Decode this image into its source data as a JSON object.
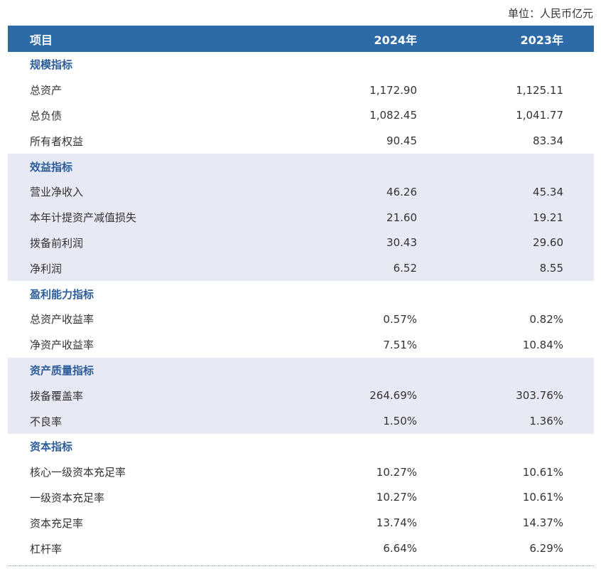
{
  "unit_label": "单位：人民币亿元",
  "header": {
    "item": "项目",
    "y1": "2024年",
    "y2": "2023年"
  },
  "sections": [
    {
      "title": "规模指标",
      "rows": [
        {
          "label": "总资产",
          "y1": "1,172.90",
          "y2": "1,125.11"
        },
        {
          "label": "总负债",
          "y1": "1,082.45",
          "y2": "1,041.77"
        },
        {
          "label": "所有者权益",
          "y1": "90.45",
          "y2": "83.34"
        }
      ]
    },
    {
      "title": "效益指标",
      "rows": [
        {
          "label": "营业净收入",
          "y1": "46.26",
          "y2": "45.34"
        },
        {
          "label": "本年计提资产减值损失",
          "y1": "21.60",
          "y2": "19.21"
        },
        {
          "label": "拨备前利润",
          "y1": "30.43",
          "y2": "29.60"
        },
        {
          "label": "净利润",
          "y1": "6.52",
          "y2": "8.55"
        }
      ]
    },
    {
      "title": "盈利能力指标",
      "rows": [
        {
          "label": "总资产收益率",
          "y1": "0.57%",
          "y2": "0.82%"
        },
        {
          "label": "净资产收益率",
          "y1": "7.51%",
          "y2": "10.84%"
        }
      ]
    },
    {
      "title": "资产质量指标",
      "rows": [
        {
          "label": "拨备覆盖率",
          "y1": "264.69%",
          "y2": "303.76%"
        },
        {
          "label": "不良率",
          "y1": "1.50%",
          "y2": "1.36%"
        }
      ]
    },
    {
      "title": "资本指标",
      "rows": [
        {
          "label": "核心一级资本充足率",
          "y1": "10.27%",
          "y2": "10.61%"
        },
        {
          "label": "一级资本充足率",
          "y1": "10.27%",
          "y2": "10.61%"
        },
        {
          "label": "资本充足率",
          "y1": "13.74%",
          "y2": "14.37%"
        },
        {
          "label": "杠杆率",
          "y1": "6.64%",
          "y2": "6.29%"
        }
      ]
    }
  ]
}
